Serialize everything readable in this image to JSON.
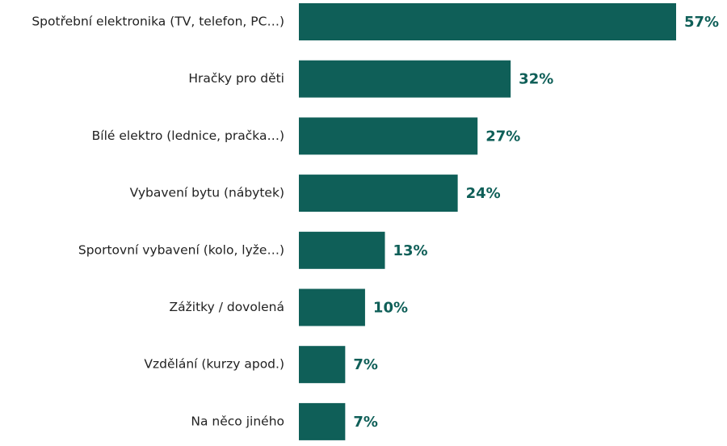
{
  "chart_data": {
    "type": "bar",
    "orientation": "horizontal",
    "color": "#0f5f58",
    "categories": [
      "Spotřební elektronika (TV, telefon, PC…)",
      "Hračky pro děti",
      "Bílé elektro (lednice, pračka…)",
      "Vybavení bytu (nábytek)",
      "Sportovní vybavení (kolo, lyže…)",
      "Zážitky / dovolená",
      "Vzdělání (kurzy apod.)",
      "Na něco jiného"
    ],
    "values": [
      57,
      32,
      27,
      24,
      13,
      10,
      7,
      7
    ],
    "value_labels": [
      "57%",
      "32%",
      "27%",
      "24%",
      "13%",
      "10%",
      "7%",
      "7%"
    ]
  }
}
